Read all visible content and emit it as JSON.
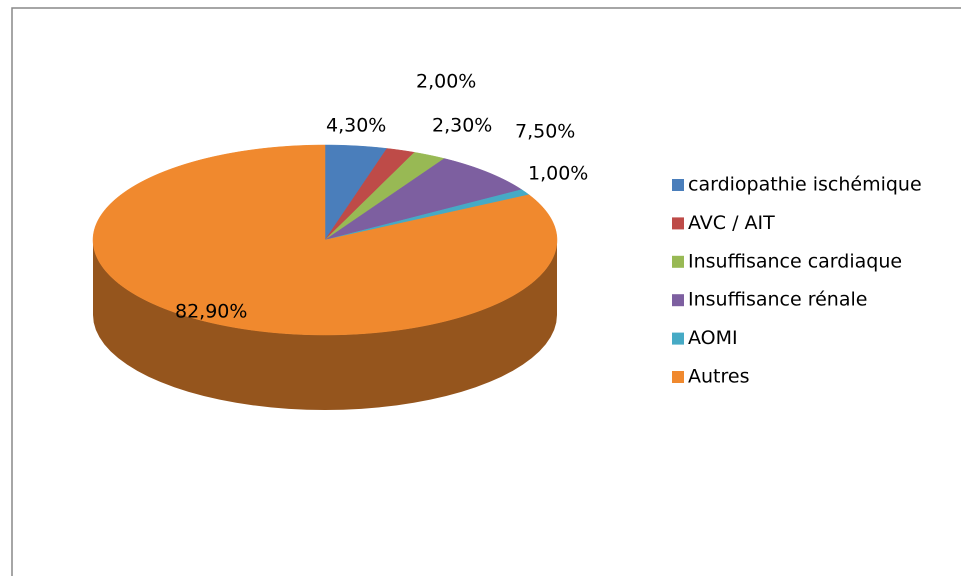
{
  "chart_data": {
    "type": "pie",
    "categories": [
      "cardiopathie ischémique",
      "AVC / AIT",
      "Insuffisance cardiaque",
      "Insuffisance rénale",
      "AOMI",
      "Autres"
    ],
    "values": [
      4.3,
      2.0,
      2.3,
      7.5,
      1.0,
      82.9
    ],
    "value_labels": [
      "4,30%",
      "2,00%",
      "2,30%",
      "7,50%",
      "1,00%",
      "82,90%"
    ],
    "colors": [
      "#4a7ebb",
      "#be4b48",
      "#98b954",
      "#7d5fa0",
      "#46aac5",
      "#f0892e"
    ],
    "legend": "right"
  }
}
